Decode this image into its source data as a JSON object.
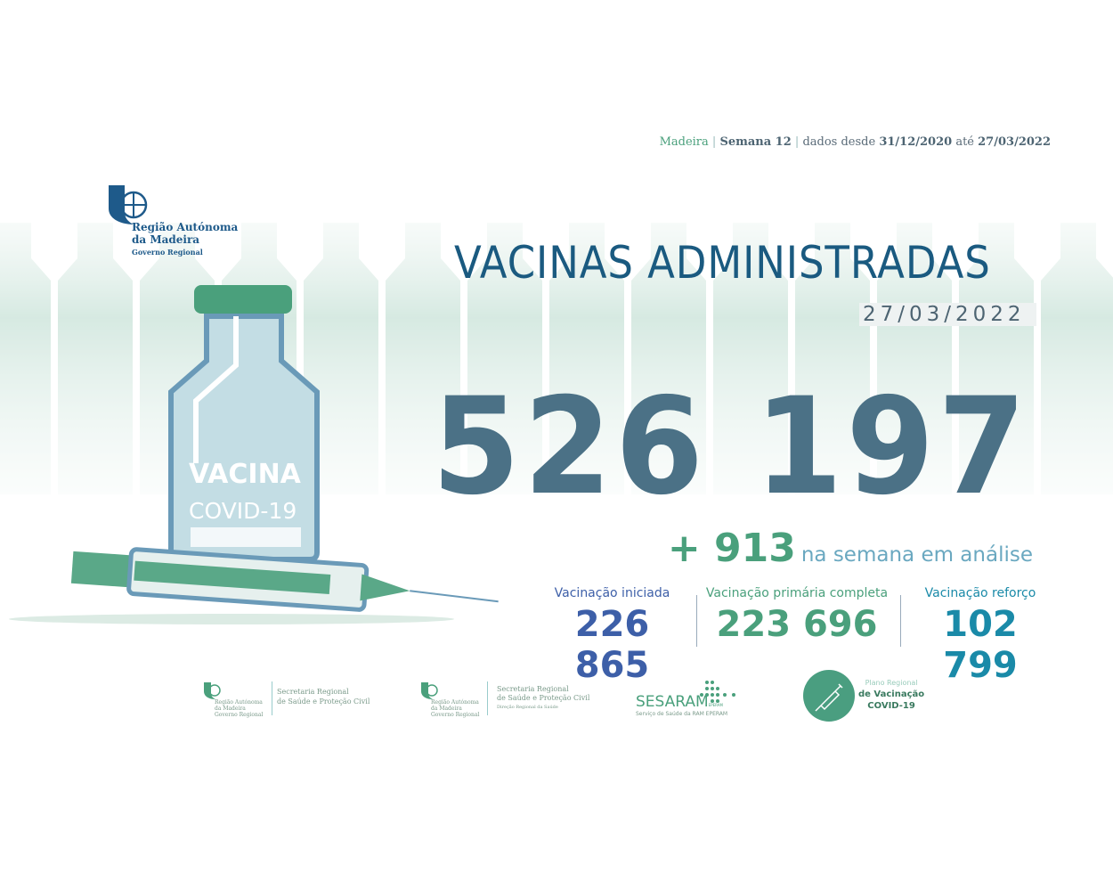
{
  "header": {
    "region": "Madeira",
    "week": "Semana 12",
    "range_prefix": "dados desde",
    "start_date": "31/12/2020",
    "range_mid": "até",
    "end_date": "27/03/2022"
  },
  "logo": {
    "line1": "Região Autónoma",
    "line2": "da Madeira",
    "line3": "Governo Regional"
  },
  "title": "VACINAS ADMINISTRADAS",
  "date": "27/03/2022",
  "total": "526 197",
  "vial": {
    "label": "VACINA",
    "sublabel": "COVID-19"
  },
  "weekly": {
    "value": "+ 913",
    "label": "na semana em análise"
  },
  "stats": [
    {
      "label": "Vacinação iniciada",
      "value": "226 865",
      "color": "#3d5fa8"
    },
    {
      "label": "Vacinação primária completa",
      "value": "223 696",
      "color": "#4aa07c"
    },
    {
      "label": "Vacinação reforço",
      "value": "102 799",
      "color": "#1a8aa8"
    }
  ],
  "footer": {
    "logo1": {
      "gov1": "Região Autónoma",
      "gov2": "da Madeira",
      "gov3": "Governo Regional",
      "sec1": "Secretaria Regional",
      "sec2": "de Saúde e Proteção Civil"
    },
    "logo2": {
      "gov1": "Região Autónoma",
      "gov2": "da Madeira",
      "gov3": "Governo Regional",
      "sec1": "Secretaria Regional",
      "sec2": "de Saúde e Proteção Civil",
      "sec3": "Direção Regional da Saúde"
    },
    "sesaram": {
      "name": "SESARAM",
      "suffix": "EPERAM",
      "sub": "Serviço de Saúde da RAM EPERAM"
    },
    "plano": {
      "l1": "Plano Regional",
      "l2": "de Vacinação",
      "l3": "COVID-19"
    }
  },
  "colors": {
    "accent_green": "#4aa07c",
    "title_blue": "#1a5a80",
    "total_slate": "#4b7186"
  }
}
